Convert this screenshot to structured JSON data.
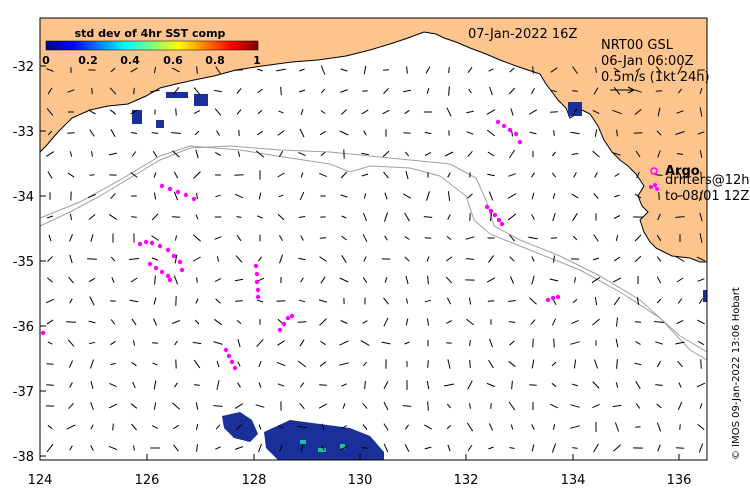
{
  "title": "07-Jan-2022 16Z",
  "colorbar": {
    "title": "std dev of 4hr SST comp",
    "ticks": [
      "0",
      "0.2",
      "0.4",
      "0.6",
      "0.8",
      "1"
    ]
  },
  "model": {
    "name": "NRT00 GSL",
    "time": "06-Jan 06:00Z",
    "scale": "0.5m/s (1kt 24h)"
  },
  "argo": {
    "label": "Argo",
    "drifters_line1": "drifters@12h",
    "drifters_line2": "to 08/01 12Z"
  },
  "footer": "© IMOS 09-Jan-2022 13:06 Hobart",
  "axes": {
    "x_ticks": [
      "124",
      "126",
      "128",
      "130",
      "132",
      "134",
      "136"
    ],
    "y_ticks": [
      "-32",
      "-33",
      "-34",
      "-35",
      "-36",
      "-37",
      "-38"
    ]
  },
  "colors": {
    "land": "#fdc48e",
    "drifter": "#ff00ff",
    "sst_patch": "#1a2f9a",
    "bathy": "#a0a0a0"
  }
}
